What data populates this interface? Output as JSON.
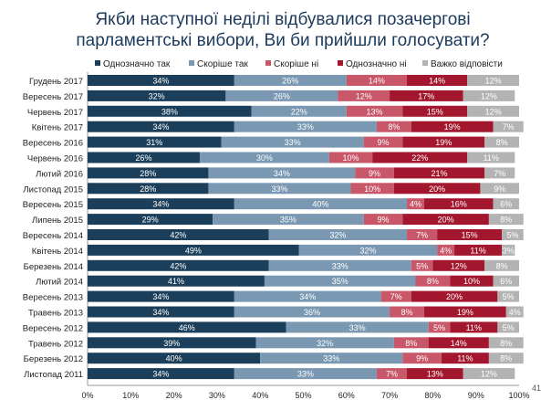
{
  "page_number": "41",
  "chart_data": {
    "type": "bar",
    "stacked": true,
    "orientation": "horizontal",
    "title": "Якби наступної неділі відбувалися позачергові парламентські вибори, Ви би прийшли голосувати?",
    "xlim": [
      0,
      100
    ],
    "x_ticks": [
      "0%",
      "10%",
      "20%",
      "30%",
      "40%",
      "50%",
      "60%",
      "70%",
      "80%",
      "90%",
      "100%"
    ],
    "legend_position": "top",
    "categories": [
      "Грудень 2017",
      "Вересень 2017",
      "Червень 2017",
      "Квітень 2017",
      "Вересень 2016",
      "Червень 2016",
      "Лютий 2016",
      "Листопад 2015",
      "Вересень 2015",
      "Липень 2015",
      "Вересень 2014",
      "Квітень 2014",
      "Березень 2014",
      "Лютий 2014",
      "Вересень 2013",
      "Травень 2013",
      "Вересень 2012",
      "Травень 2012",
      "Березень 2012",
      "Листопад 2011"
    ],
    "series": [
      {
        "name": "Однозначно так",
        "color": "#1b3f5a",
        "values": [
          34,
          32,
          38,
          34,
          31,
          26,
          28,
          28,
          34,
          29,
          42,
          49,
          42,
          41,
          34,
          34,
          46,
          39,
          40,
          34
        ]
      },
      {
        "name": "Скоріше так",
        "color": "#7a98b2",
        "values": [
          26,
          26,
          22,
          33,
          33,
          30,
          34,
          33,
          40,
          35,
          32,
          32,
          33,
          35,
          34,
          36,
          33,
          32,
          33,
          33
        ]
      },
      {
        "name": "Скоріше ні",
        "color": "#c9576a",
        "values": [
          14,
          12,
          13,
          8,
          9,
          10,
          9,
          10,
          4,
          9,
          7,
          4,
          5,
          8,
          7,
          8,
          5,
          8,
          9,
          7
        ]
      },
      {
        "name": "Однозначно ні",
        "color": "#a3172e",
        "values": [
          14,
          17,
          15,
          19,
          19,
          22,
          21,
          20,
          16,
          20,
          15,
          11,
          12,
          10,
          20,
          19,
          11,
          14,
          11,
          13
        ]
      },
      {
        "name": "Важко відповісти",
        "color": "#b3b3b3",
        "values": [
          12,
          12,
          12,
          7,
          8,
          11,
          7,
          9,
          6,
          8,
          5,
          3,
          8,
          6,
          5,
          4,
          5,
          8,
          8,
          12
        ]
      }
    ]
  }
}
